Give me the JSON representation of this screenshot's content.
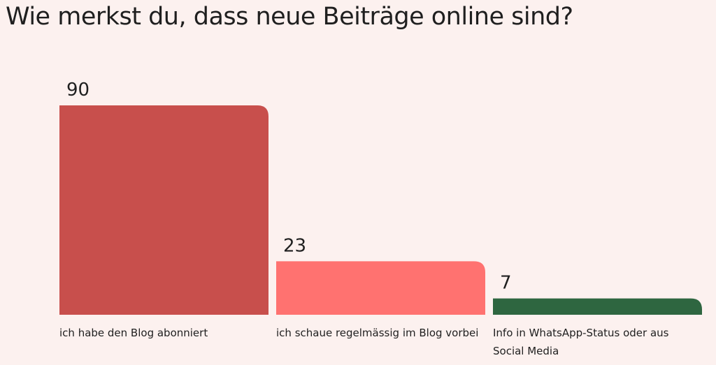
{
  "chart_data": {
    "type": "bar",
    "title": "Wie merkst du, dass neue Beiträge online sind?",
    "categories": [
      [
        "ich habe den Blog abonniert"
      ],
      [
        "ich schaue regelmässig im Blog vorbei"
      ],
      [
        "Info in WhatsApp-Status oder aus",
        "Social Media"
      ]
    ],
    "values": [
      90,
      23,
      7
    ],
    "colors": [
      "#c84f4c",
      "#ff7270",
      "#2e6640"
    ],
    "ylim": [
      0,
      90
    ],
    "grid": false,
    "legend": "none"
  }
}
